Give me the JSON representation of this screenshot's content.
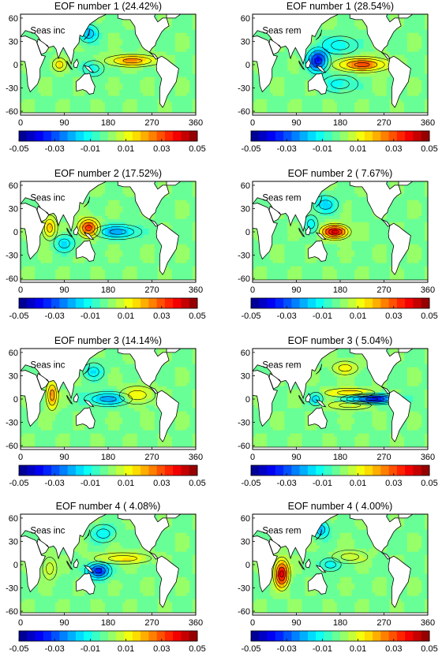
{
  "chart_data": [
    {
      "type": "heatmap",
      "title": "EOF number  1 (24.42%)",
      "panel_label": "Seas inc",
      "variance_percent": 24.42,
      "x_ticks": [
        0,
        90,
        180,
        270,
        360
      ],
      "y_ticks": [
        60,
        30,
        0,
        -30,
        -60
      ],
      "xlim": [
        0,
        360
      ],
      "ylim": [
        -65,
        65
      ],
      "colorbar": {
        "ticks": [
          "-0.05",
          "-0.03",
          "-0.01",
          "0.01",
          "0.03",
          "0.05"
        ],
        "range": [
          -0.05,
          0.05
        ]
      },
      "features": [
        {
          "kind": "positive",
          "lon": 80,
          "lat": 0,
          "strength": 0.35,
          "sx": 10,
          "sy": 6
        },
        {
          "kind": "positive",
          "lon": 230,
          "lat": 5,
          "strength": 0.55,
          "sx": 35,
          "sy": 5
        },
        {
          "kind": "negative",
          "lon": 140,
          "lat": 40,
          "strength": 0.45,
          "sx": 14,
          "sy": 8
        },
        {
          "kind": "negative",
          "lon": 150,
          "lat": -5,
          "strength": 0.3,
          "sx": 15,
          "sy": 7
        }
      ]
    },
    {
      "type": "heatmap",
      "title": "EOF number  1 (28.54%)",
      "panel_label": "Seas rem",
      "variance_percent": 28.54,
      "x_ticks": [
        0,
        90,
        180,
        270,
        360
      ],
      "y_ticks": [
        60,
        30,
        0,
        -30,
        -60
      ],
      "xlim": [
        0,
        360
      ],
      "ylim": [
        -65,
        65
      ],
      "colorbar": {
        "ticks": [
          "-0.05",
          "-0.03",
          "-0.01",
          "0.01",
          "0.03",
          "0.05"
        ],
        "range": [
          -0.05,
          0.05
        ]
      },
      "features": [
        {
          "kind": "positive",
          "lon": 225,
          "lat": 0,
          "strength": 0.7,
          "sx": 35,
          "sy": 6
        },
        {
          "kind": "negative",
          "lon": 135,
          "lat": 5,
          "strength": 0.85,
          "sx": 15,
          "sy": 10
        },
        {
          "kind": "negative",
          "lon": 180,
          "lat": 25,
          "strength": 0.3,
          "sx": 25,
          "sy": 8
        },
        {
          "kind": "negative",
          "lon": 180,
          "lat": -25,
          "strength": 0.25,
          "sx": 25,
          "sy": 8
        }
      ]
    },
    {
      "type": "heatmap",
      "title": "EOF number  2 (17.52%)",
      "panel_label": "Seas inc",
      "variance_percent": 17.52,
      "x_ticks": [
        0,
        90,
        180,
        270,
        360
      ],
      "y_ticks": [
        60,
        30,
        0,
        -30,
        -60
      ],
      "xlim": [
        0,
        360
      ],
      "ylim": [
        -65,
        65
      ],
      "colorbar": {
        "ticks": [
          "-0.05",
          "-0.03",
          "-0.01",
          "0.01",
          "0.03",
          "0.05"
        ],
        "range": [
          -0.05,
          0.05
        ]
      },
      "features": [
        {
          "kind": "positive",
          "lon": 140,
          "lat": 5,
          "strength": 0.85,
          "sx": 14,
          "sy": 8
        },
        {
          "kind": "positive",
          "lon": 60,
          "lat": 5,
          "strength": 0.5,
          "sx": 10,
          "sy": 10
        },
        {
          "kind": "negative",
          "lon": 200,
          "lat": 0,
          "strength": 0.5,
          "sx": 30,
          "sy": 6
        },
        {
          "kind": "negative",
          "lon": 90,
          "lat": -15,
          "strength": 0.35,
          "sx": 15,
          "sy": 8
        }
      ]
    },
    {
      "type": "heatmap",
      "title": "EOF number  2 ( 7.67%)",
      "panel_label": "Seas rem",
      "variance_percent": 7.67,
      "x_ticks": [
        0,
        90,
        180,
        270,
        360
      ],
      "y_ticks": [
        60,
        30,
        0,
        -30,
        -60
      ],
      "xlim": [
        0,
        360
      ],
      "ylim": [
        -65,
        65
      ],
      "colorbar": {
        "ticks": [
          "-0.05",
          "-0.03",
          "-0.01",
          "0.01",
          "0.03",
          "0.05"
        ],
        "range": [
          -0.05,
          0.05
        ]
      },
      "features": [
        {
          "kind": "positive",
          "lon": 170,
          "lat": 0,
          "strength": 1.0,
          "sx": 18,
          "sy": 6
        },
        {
          "kind": "negative",
          "lon": 150,
          "lat": 35,
          "strength": 0.35,
          "sx": 18,
          "sy": 8
        },
        {
          "kind": "negative",
          "lon": 120,
          "lat": 10,
          "strength": 0.3,
          "sx": 10,
          "sy": 8
        }
      ]
    },
    {
      "type": "heatmap",
      "title": "EOF number  3 (14.14%)",
      "panel_label": "Seas inc",
      "variance_percent": 14.14,
      "x_ticks": [
        0,
        90,
        180,
        270,
        360
      ],
      "y_ticks": [
        60,
        30,
        0,
        -30,
        -60
      ],
      "xlim": [
        0,
        360
      ],
      "ylim": [
        -65,
        65
      ],
      "colorbar": {
        "ticks": [
          "-0.05",
          "-0.03",
          "-0.01",
          "0.01",
          "0.03",
          "0.05"
        ],
        "range": [
          -0.05,
          0.05
        ]
      },
      "features": [
        {
          "kind": "positive",
          "lon": 65,
          "lat": 5,
          "strength": 0.6,
          "sx": 8,
          "sy": 12
        },
        {
          "kind": "positive",
          "lon": 240,
          "lat": 5,
          "strength": 0.35,
          "sx": 25,
          "sy": 8
        },
        {
          "kind": "negative",
          "lon": 180,
          "lat": 0,
          "strength": 0.5,
          "sx": 30,
          "sy": 6
        },
        {
          "kind": "negative",
          "lon": 150,
          "lat": 35,
          "strength": 0.3,
          "sx": 15,
          "sy": 8
        }
      ]
    },
    {
      "type": "heatmap",
      "title": "EOF number  3 ( 5.04%)",
      "panel_label": "Seas rem",
      "variance_percent": 5.04,
      "x_ticks": [
        0,
        90,
        180,
        270,
        360
      ],
      "y_ticks": [
        60,
        30,
        0,
        -30,
        -60
      ],
      "xlim": [
        0,
        360
      ],
      "ylim": [
        -65,
        65
      ],
      "colorbar": {
        "ticks": [
          "-0.05",
          "-0.03",
          "-0.01",
          "0.01",
          "0.03",
          "0.05"
        ],
        "range": [
          -0.05,
          0.05
        ]
      },
      "features": [
        {
          "kind": "negative",
          "lon": 245,
          "lat": 0,
          "strength": 0.9,
          "sx": 35,
          "sy": 4
        },
        {
          "kind": "positive",
          "lon": 200,
          "lat": 8,
          "strength": 0.45,
          "sx": 35,
          "sy": 4
        },
        {
          "kind": "positive",
          "lon": 200,
          "lat": -8,
          "strength": 0.3,
          "sx": 30,
          "sy": 4
        },
        {
          "kind": "negative",
          "lon": 130,
          "lat": 0,
          "strength": 0.35,
          "sx": 10,
          "sy": 6
        },
        {
          "kind": "positive",
          "lon": 190,
          "lat": 40,
          "strength": 0.3,
          "sx": 18,
          "sy": 6
        }
      ]
    },
    {
      "type": "heatmap",
      "title": "EOF number  4 ( 4.08%)",
      "panel_label": "Seas inc",
      "variance_percent": 4.08,
      "x_ticks": [
        0,
        90,
        180,
        270,
        360
      ],
      "y_ticks": [
        60,
        30,
        0,
        -30,
        -60
      ],
      "xlim": [
        0,
        360
      ],
      "ylim": [
        -65,
        65
      ],
      "colorbar": {
        "ticks": [
          "-0.05",
          "-0.03",
          "-0.01",
          "0.01",
          "0.03",
          "0.05"
        ],
        "range": [
          -0.05,
          0.05
        ]
      },
      "features": [
        {
          "kind": "negative",
          "lon": 160,
          "lat": -8,
          "strength": 0.85,
          "sx": 16,
          "sy": 7
        },
        {
          "kind": "negative",
          "lon": 170,
          "lat": 40,
          "strength": 0.3,
          "sx": 18,
          "sy": 8
        },
        {
          "kind": "positive",
          "lon": 210,
          "lat": 8,
          "strength": 0.35,
          "sx": 40,
          "sy": 5
        },
        {
          "kind": "positive",
          "lon": 60,
          "lat": -5,
          "strength": 0.25,
          "sx": 10,
          "sy": 10
        }
      ]
    },
    {
      "type": "heatmap",
      "title": "EOF number  4 ( 4.00%)",
      "panel_label": "Seas rem",
      "variance_percent": 4.0,
      "x_ticks": [
        0,
        90,
        180,
        270,
        360
      ],
      "y_ticks": [
        60,
        30,
        0,
        -30,
        -60
      ],
      "xlim": [
        0,
        360
      ],
      "ylim": [
        -65,
        65
      ],
      "colorbar": {
        "ticks": [
          "-0.05",
          "-0.03",
          "-0.01",
          "0.01",
          "0.03",
          "0.05"
        ],
        "range": [
          -0.05,
          0.05
        ]
      },
      "features": [
        {
          "kind": "positive",
          "lon": 60,
          "lat": -12,
          "strength": 1.0,
          "sx": 10,
          "sy": 12
        },
        {
          "kind": "negative",
          "lon": 140,
          "lat": 45,
          "strength": 0.45,
          "sx": 12,
          "sy": 8
        },
        {
          "kind": "negative",
          "lon": 160,
          "lat": 0,
          "strength": 0.35,
          "sx": 15,
          "sy": 6
        },
        {
          "kind": "positive",
          "lon": 200,
          "lat": 10,
          "strength": 0.2,
          "sx": 25,
          "sy": 6
        }
      ]
    }
  ],
  "colors": {
    "land": "#ffffff",
    "ocean_neutral": "#7fd36f",
    "contour": "#000000"
  }
}
